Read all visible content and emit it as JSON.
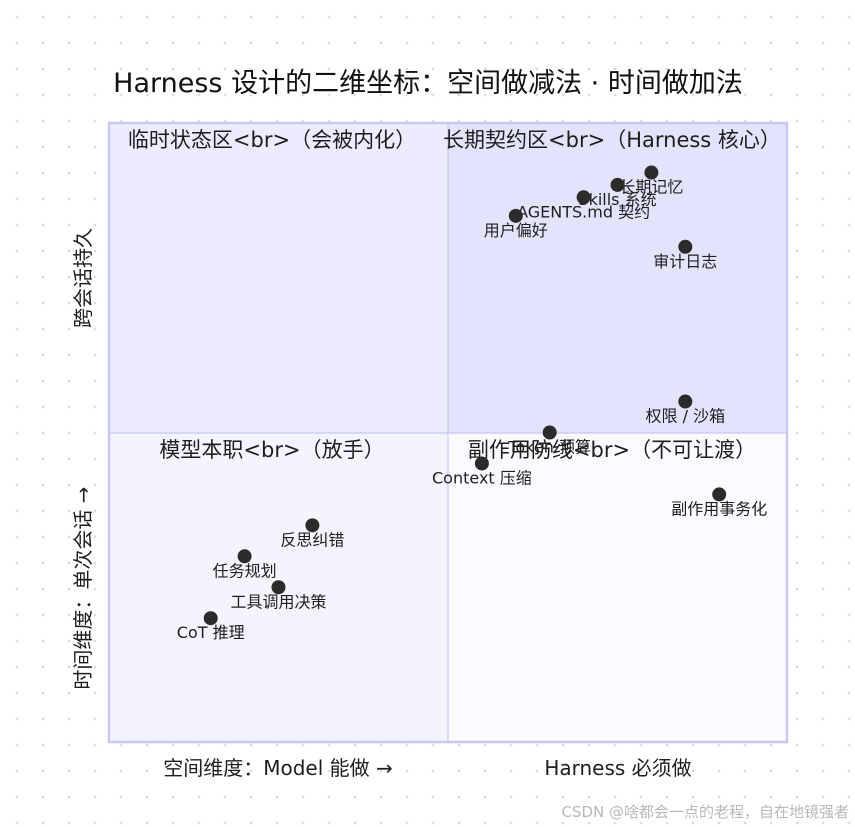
{
  "chart_data": {
    "type": "scatter",
    "title": "Harness 设计的二维坐标：空间做减法 · 时间做加法",
    "x_axis": {
      "left_label": "空间维度：Model 能做 →",
      "right_label": "Harness 必须做",
      "range": [
        0,
        1
      ]
    },
    "y_axis": {
      "bottom_label": "时间维度：单次会话 →",
      "top_label": "跨会话持久",
      "range": [
        0,
        1
      ]
    },
    "quadrants": {
      "top_left": "临时状态区<br>（会被内化）",
      "top_right": "长期契约区<br>（Harness 核心）",
      "bottom_left": "模型本职<br>（放手）",
      "bottom_right": "副作用防线<br>（不可让渡）"
    },
    "points": [
      {
        "label": "长期记忆",
        "x": 0.8,
        "y": 0.92
      },
      {
        "label": "Skills 系统",
        "x": 0.75,
        "y": 0.9
      },
      {
        "label": "AGENTS.md 契约",
        "x": 0.7,
        "y": 0.88
      },
      {
        "label": "用户偏好",
        "x": 0.6,
        "y": 0.85
      },
      {
        "label": "审计日志",
        "x": 0.85,
        "y": 0.8
      },
      {
        "label": "权限 / 沙箱",
        "x": 0.85,
        "y": 0.55
      },
      {
        "label": "Token 预算",
        "x": 0.65,
        "y": 0.5
      },
      {
        "label": "Context 压缩",
        "x": 0.55,
        "y": 0.45
      },
      {
        "label": "副作用事务化",
        "x": 0.9,
        "y": 0.4
      },
      {
        "label": "反思纠错",
        "x": 0.3,
        "y": 0.35
      },
      {
        "label": "任务规划",
        "x": 0.2,
        "y": 0.3
      },
      {
        "label": "工具调用决策",
        "x": 0.25,
        "y": 0.25
      },
      {
        "label": "CoT 推理",
        "x": 0.15,
        "y": 0.2
      }
    ],
    "colors": {
      "quadrant_top_left": "#ececfe",
      "quadrant_top_right": "#e3e3fc",
      "quadrant_bottom_left": "#f4f4fe",
      "quadrant_bottom_right": "#fafaff",
      "border": "#c8c8f0",
      "point": "#2b2b2b"
    }
  },
  "watermark": "CSDN @啥都会一点的老程，自在地镜强者"
}
